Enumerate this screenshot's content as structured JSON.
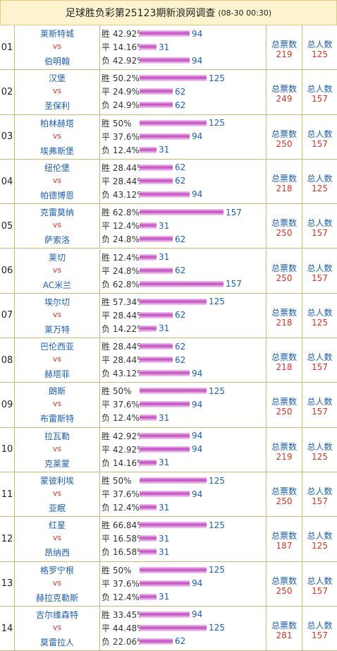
{
  "header": {
    "title": "足球胜负彩第25123期新浪网调查",
    "time": "(08-30 00:30)"
  },
  "labels": {
    "vs": "vs",
    "total_votes": "总票数",
    "total_people": "总人数"
  },
  "matches": [
    {
      "num": "01",
      "home": "莱斯特城",
      "away": "伯明翰",
      "win": "胜 42.92%",
      "draw": "平 14.16%",
      "lose": "负 42.92%",
      "wc": "94",
      "dc": "31",
      "lc": "94",
      "wv": 94,
      "dv": 31,
      "lv": 94,
      "votes": "219",
      "people": "125"
    },
    {
      "num": "02",
      "home": "汉堡",
      "away": "圣保利",
      "win": "胜 50.2%",
      "draw": "平 24.9%",
      "lose": "负 24.9%",
      "wc": "125",
      "dc": "62",
      "lc": "62",
      "wv": 125,
      "dv": 62,
      "lv": 62,
      "votes": "249",
      "people": "157"
    },
    {
      "num": "03",
      "home": "柏林赫塔",
      "away": "埃弗斯堡",
      "win": "胜  50%",
      "draw": "平 37.6%",
      "lose": "负 12.4%",
      "wc": "125",
      "dc": "94",
      "lc": "31",
      "wv": 125,
      "dv": 94,
      "lv": 31,
      "votes": "250",
      "people": "157"
    },
    {
      "num": "04",
      "home": "纽伦堡",
      "away": "帕德博恩",
      "win": "胜 28.44%",
      "draw": "平 28.44%",
      "lose": "负 43.12%",
      "wc": "62",
      "dc": "62",
      "lc": "94",
      "wv": 62,
      "dv": 62,
      "lv": 94,
      "votes": "218",
      "people": "125"
    },
    {
      "num": "05",
      "home": "克雷莫纳",
      "away": "萨索洛",
      "win": "胜 62.8%",
      "draw": "平 12.4%",
      "lose": "负 24.8%",
      "wc": "157",
      "dc": "31",
      "lc": "62",
      "wv": 157,
      "dv": 31,
      "lv": 62,
      "votes": "250",
      "people": "157"
    },
    {
      "num": "06",
      "home": "莱切",
      "away": "AC米兰",
      "win": "胜 12.4%",
      "draw": "平 24.8%",
      "lose": "负 62.8%",
      "wc": "31",
      "dc": "62",
      "lc": "157",
      "wv": 31,
      "dv": 62,
      "lv": 157,
      "votes": "250",
      "people": "157"
    },
    {
      "num": "07",
      "home": "埃尔切",
      "away": "莱万特",
      "win": "胜 57.34%",
      "draw": "平 28.44%",
      "lose": "负 14.22%",
      "wc": "125",
      "dc": "62",
      "lc": "31",
      "wv": 125,
      "dv": 62,
      "lv": 31,
      "votes": "218",
      "people": "125"
    },
    {
      "num": "08",
      "home": "巴伦西亚",
      "away": "赫塔菲",
      "win": "胜 28.44%",
      "draw": "平 28.44%",
      "lose": "负 43.12%",
      "wc": "62",
      "dc": "62",
      "lc": "94",
      "wv": 62,
      "dv": 62,
      "lv": 94,
      "votes": "218",
      "people": "157"
    },
    {
      "num": "09",
      "home": "朗斯",
      "away": "布雷斯特",
      "win": "胜  50%",
      "draw": "平 37.6%",
      "lose": "负 12.4%",
      "wc": "125",
      "dc": "94",
      "lc": "31",
      "wv": 125,
      "dv": 94,
      "lv": 31,
      "votes": "250",
      "people": "157"
    },
    {
      "num": "10",
      "home": "拉瓦勒",
      "away": "克莱蒙",
      "win": "胜 42.92%",
      "draw": "平 42.92%",
      "lose": "负 14.16%",
      "wc": "94",
      "dc": "94",
      "lc": "31",
      "wv": 94,
      "dv": 94,
      "lv": 31,
      "votes": "219",
      "people": "125"
    },
    {
      "num": "11",
      "home": "蒙彼利埃",
      "away": "亚眠",
      "win": "胜  50%",
      "draw": "平 37.6%",
      "lose": "负 12.4%",
      "wc": "125",
      "dc": "94",
      "lc": "31",
      "wv": 125,
      "dv": 94,
      "lv": 31,
      "votes": "250",
      "people": "157"
    },
    {
      "num": "12",
      "home": "红星",
      "away": "昂纳西",
      "win": "胜 66.84%",
      "draw": "平 16.58%",
      "lose": "负 16.58%",
      "wc": "125",
      "dc": "31",
      "lc": "31",
      "wv": 125,
      "dv": 31,
      "lv": 31,
      "votes": "187",
      "people": "125"
    },
    {
      "num": "13",
      "home": "格罗宁根",
      "away": "赫拉克勒斯",
      "win": "胜  50%",
      "draw": "平 37.6%",
      "lose": "负 12.4%",
      "wc": "125",
      "dc": "94",
      "lc": "31",
      "wv": 125,
      "dv": 94,
      "lv": 31,
      "votes": "250",
      "people": "157"
    },
    {
      "num": "14",
      "home": "吉尔维森特",
      "away": "莫雷拉人",
      "win": "胜 33.45%",
      "draw": "平 44.48%",
      "lose": "负 22.06%",
      "wc": "94",
      "dc": "125",
      "lc": "62",
      "wv": 94,
      "dv": 125,
      "lv": 62,
      "votes": "281",
      "people": "157"
    }
  ]
}
